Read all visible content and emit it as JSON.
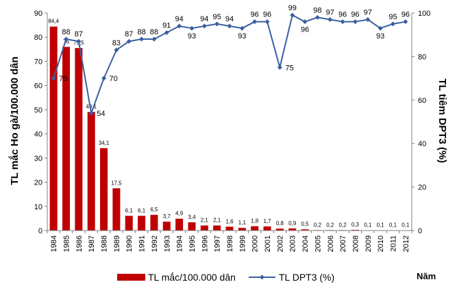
{
  "chart_data": {
    "type": "bar+line",
    "categories": [
      "1984",
      "1985",
      "1986",
      "1987",
      "1988",
      "1989",
      "1990",
      "1991",
      "1992",
      "1993",
      "1994",
      "1995",
      "1996",
      "1997",
      "1998",
      "1999",
      "2000",
      "2001",
      "2002",
      "2003",
      "2004",
      "2005",
      "2006",
      "2007",
      "2008",
      "2009",
      "2010",
      "2011",
      "2012"
    ],
    "series": [
      {
        "name": "TL mắc/100.000 dân",
        "type": "bar",
        "axis": "left",
        "color": "#C00000",
        "values": [
          84.4,
          76,
          75.5,
          49.1,
          34.1,
          17.5,
          6.1,
          6.1,
          6.5,
          3.7,
          4.9,
          3.4,
          2.1,
          2.1,
          1.6,
          1.1,
          1.8,
          1.7,
          0.8,
          0.9,
          0.5,
          0.2,
          0.2,
          0.2,
          0.3,
          0.1,
          0.1,
          0.1,
          0.1
        ],
        "labels": [
          "84,4",
          "76",
          "75,5",
          "49,1",
          "34,1",
          "17,5",
          "6,1",
          "6,1",
          "6,5",
          "3,7",
          "4,9",
          "3,4",
          "2,1",
          "2,1",
          "1,6",
          "1,1",
          "1,8",
          "1,7",
          "0,8",
          "0,9",
          "0,5",
          "0,2",
          "0,2",
          "0,2",
          "0,3",
          "0,1",
          "0,1",
          "0,1",
          "0,1"
        ]
      },
      {
        "name": "TL DPT3 (%)",
        "type": "line",
        "axis": "right",
        "color": "#3A5FA0",
        "values": [
          70,
          88,
          87,
          54,
          70,
          83,
          87,
          88,
          88,
          91,
          94,
          93,
          94,
          95,
          94,
          93,
          96,
          96,
          75,
          99,
          96,
          98,
          97,
          96,
          96,
          97,
          93,
          95,
          96
        ]
      }
    ],
    "ylabel": "TL mắc Ho gà/100.000 dân",
    "ylabel_right": "TL tiêm DPT3 (%)",
    "xlabel": "Năm",
    "ylim": [
      0,
      90
    ],
    "yticks": [
      0,
      10,
      20,
      30,
      40,
      50,
      60,
      70,
      80,
      90
    ],
    "ylim_right": [
      0,
      100
    ],
    "yticks_right": [
      0,
      20,
      40,
      60,
      80,
      100
    ],
    "grid": false,
    "legend": "bottom"
  }
}
